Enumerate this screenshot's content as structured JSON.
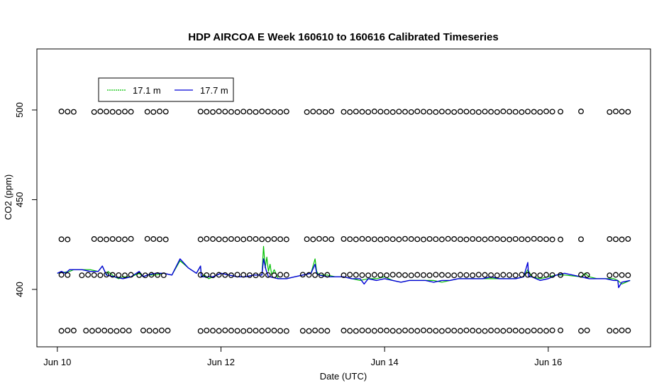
{
  "chart_data": {
    "type": "line",
    "title": "HDP AIRCOA E  Week 160610 to 160616  Calibrated Timeseries",
    "xlabel": "Date (UTC)",
    "ylabel": "CO2 (ppm)",
    "x_ticks": [
      {
        "value": 0,
        "label": "Jun 10"
      },
      {
        "value": 2,
        "label": "Jun 12"
      },
      {
        "value": 4,
        "label": "Jun 14"
      },
      {
        "value": 6,
        "label": "Jun 16"
      }
    ],
    "y_ticks": [
      400,
      450,
      500
    ],
    "xlim": [
      -0.25,
      7.25
    ],
    "ylim": [
      368,
      534
    ],
    "legend_position": "top-left",
    "series": [
      {
        "name": "17.1 m",
        "color": "#00c000",
        "x": [
          0,
          0.15,
          0.2,
          0.4,
          0.5,
          0.55,
          0.6,
          0.62,
          0.7,
          0.75,
          0.8,
          0.9,
          1.0,
          1.05,
          1.1,
          1.2,
          1.3,
          1.4,
          1.5,
          1.6,
          1.7,
          1.75,
          1.76,
          1.8,
          1.85,
          1.9,
          2.0,
          2.1,
          2.2,
          2.3,
          2.4,
          2.5,
          2.52,
          2.54,
          2.56,
          2.58,
          2.6,
          2.62,
          2.65,
          2.7,
          2.8,
          2.9,
          3.0,
          3.1,
          3.15,
          3.17,
          3.2,
          3.3,
          3.4,
          3.5,
          3.6,
          3.7,
          3.8,
          3.9,
          4.0,
          4.1,
          4.2,
          4.3,
          4.4,
          4.5,
          4.6,
          4.7,
          4.8,
          4.9,
          5.0,
          5.2,
          5.4,
          5.6,
          5.7,
          5.75,
          5.8,
          5.9,
          6.0,
          6.1,
          6.2,
          6.4,
          6.45,
          6.5,
          6.6,
          6.7,
          6.8,
          6.85,
          6.9,
          7.0
        ],
        "values": [
          409,
          410,
          411,
          411,
          410,
          413,
          408,
          410,
          407,
          406,
          407,
          407,
          409,
          407,
          408,
          408,
          409,
          408,
          416,
          412,
          409,
          413,
          407,
          408,
          406,
          407,
          409,
          408,
          407,
          407,
          408,
          408,
          424,
          412,
          418,
          410,
          414,
          408,
          411,
          406,
          406,
          407,
          408,
          409,
          417,
          410,
          408,
          408,
          407,
          407,
          406,
          405,
          406,
          406,
          407,
          405,
          404,
          405,
          405,
          405,
          405,
          404,
          405,
          406,
          406,
          406,
          406,
          406,
          407,
          411,
          407,
          406,
          407,
          408,
          408,
          407,
          409,
          407,
          406,
          406,
          406,
          405,
          403,
          405
        ]
      },
      {
        "name": "17.7 m",
        "color": "#0000d8",
        "x": [
          0,
          0.05,
          0.1,
          0.15,
          0.2,
          0.3,
          0.4,
          0.5,
          0.55,
          0.6,
          0.7,
          0.8,
          0.9,
          1.0,
          1.05,
          1.1,
          1.2,
          1.3,
          1.4,
          1.5,
          1.6,
          1.7,
          1.75,
          1.76,
          1.8,
          1.9,
          2.0,
          2.1,
          2.2,
          2.3,
          2.4,
          2.5,
          2.52,
          2.55,
          2.58,
          2.6,
          2.7,
          2.8,
          2.9,
          3.0,
          3.1,
          3.15,
          3.17,
          3.2,
          3.3,
          3.4,
          3.5,
          3.6,
          3.7,
          3.75,
          3.8,
          3.9,
          4.0,
          4.1,
          4.2,
          4.3,
          4.4,
          4.5,
          4.6,
          4.7,
          4.8,
          4.9,
          5.0,
          5.1,
          5.2,
          5.3,
          5.4,
          5.5,
          5.6,
          5.7,
          5.75,
          5.76,
          5.8,
          5.9,
          6.0,
          6.1,
          6.2,
          6.3,
          6.4,
          6.5,
          6.6,
          6.7,
          6.8,
          6.85,
          6.86,
          6.9,
          7.0
        ],
        "values": [
          409,
          410,
          409,
          411,
          411,
          411,
          410,
          410,
          413,
          408,
          407,
          406,
          407,
          410,
          407,
          408,
          409,
          409,
          408,
          417,
          412,
          409,
          413,
          407,
          407,
          407,
          409,
          408,
          407,
          407,
          408,
          408,
          417,
          411,
          407,
          407,
          406,
          406,
          407,
          408,
          409,
          414,
          409,
          408,
          407,
          407,
          407,
          406,
          406,
          403,
          406,
          405,
          406,
          405,
          404,
          405,
          405,
          405,
          404,
          405,
          405,
          406,
          406,
          406,
          406,
          407,
          406,
          406,
          406,
          407,
          415,
          407,
          407,
          405,
          406,
          408,
          409,
          408,
          407,
          406,
          406,
          406,
          405,
          405,
          401,
          404,
          405
        ]
      }
    ],
    "standards": {
      "name": "calibration standards",
      "marker": "open-circle",
      "levels": [
        {
          "y": 499,
          "segments": [
            [
              0.05,
              0.2
            ],
            [
              0.45,
              0.9
            ],
            [
              1.1,
              1.35
            ],
            [
              1.75,
              2.85
            ],
            [
              3.05,
              3.35
            ],
            [
              3.5,
              6.05
            ],
            [
              6.15,
              6.2
            ],
            [
              6.4,
              6.45
            ],
            [
              6.75,
              7.0
            ]
          ]
        },
        {
          "y": 428,
          "segments": [
            [
              0.05,
              0.15
            ],
            [
              0.45,
              0.9
            ],
            [
              1.1,
              1.35
            ],
            [
              1.75,
              2.85
            ],
            [
              3.05,
              3.35
            ],
            [
              3.5,
              6.05
            ],
            [
              6.15,
              6.2
            ],
            [
              6.4,
              6.45
            ],
            [
              6.75,
              7.0
            ]
          ]
        },
        {
          "y": 408,
          "segments": [
            [
              0.05,
              0.15
            ],
            [
              0.3,
              0.9
            ],
            [
              1.0,
              1.35
            ],
            [
              1.75,
              2.85
            ],
            [
              3.0,
              3.35
            ],
            [
              3.5,
              6.05
            ],
            [
              6.15,
              6.2
            ],
            [
              6.4,
              6.5
            ],
            [
              6.75,
              7.0
            ]
          ]
        },
        {
          "y": 377,
          "segments": [
            [
              0.05,
              0.2
            ],
            [
              0.35,
              0.9
            ],
            [
              1.05,
              1.35
            ],
            [
              1.75,
              2.85
            ],
            [
              3.0,
              3.35
            ],
            [
              3.5,
              6.05
            ],
            [
              6.15,
              6.2
            ],
            [
              6.4,
              6.5
            ],
            [
              6.75,
              7.0
            ]
          ]
        }
      ]
    }
  }
}
